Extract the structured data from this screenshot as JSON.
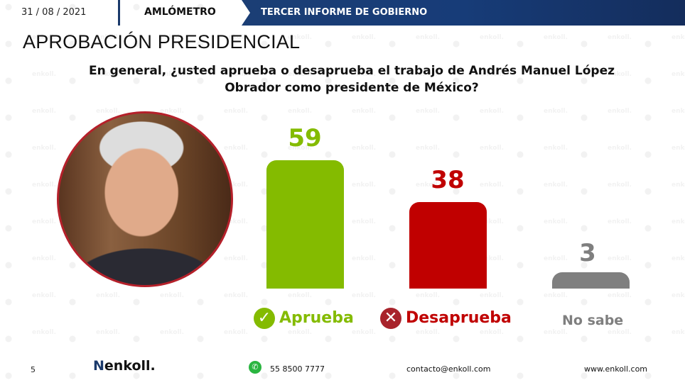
{
  "header": {
    "date": "31 / 08 / 2021",
    "section": "AMLÓMETRO",
    "banner": "TERCER INFORME DE GOBIERNO"
  },
  "title": "APROBACIÓN PRESIDENCIAL",
  "question": "En general, ¿usted aprueba o desaprueba el trabajo de Andrés Manuel López Obrador como presidente de México?",
  "labels": {
    "approve": "Aprueba",
    "disapprove": "Desaprueba",
    "unknown": "No sabe"
  },
  "values": {
    "approve": "59",
    "disapprove": "38",
    "unknown": "3"
  },
  "colors": {
    "approve": "#84bb00",
    "disapprove": "#c00000",
    "unknown": "#7f7f7f",
    "banner": "#1b3e75",
    "photo_border": "#b5202a"
  },
  "footer": {
    "page": "5",
    "brand": "enkoll.",
    "phone": "55 8500 7777",
    "email": "contacto@enkoll.com",
    "web": "www.enkoll.com"
  },
  "watermark": "enkoll.",
  "chart_data": {
    "type": "bar",
    "title": "APROBACIÓN PRESIDENCIAL",
    "subtitle": "En general, ¿usted aprueba o desaprueba el trabajo de Andrés Manuel López Obrador como presidente de México?",
    "categories": [
      "Aprueba",
      "Desaprueba",
      "No sabe"
    ],
    "values": [
      59,
      38,
      3
    ],
    "colors": [
      "#84bb00",
      "#c00000",
      "#7f7f7f"
    ],
    "xlabel": "",
    "ylabel": "",
    "grid": false,
    "legend": "none",
    "data_labels": true
  }
}
